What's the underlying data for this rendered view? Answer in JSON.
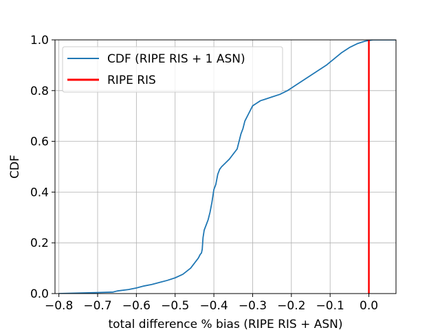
{
  "chart_data": {
    "type": "line",
    "title": "",
    "xlabel": "total difference % bias (RIPE RIS + ASN)",
    "ylabel": "CDF",
    "xlim": [
      -0.81,
      0.07
    ],
    "ylim": [
      0.0,
      1.0
    ],
    "xticks": [
      -0.8,
      -0.7,
      -0.6,
      -0.5,
      -0.4,
      -0.3,
      -0.2,
      -0.1,
      0.0
    ],
    "xtick_labels": [
      "−0.8",
      "−0.7",
      "−0.6",
      "−0.5",
      "−0.4",
      "−0.3",
      "−0.2",
      "−0.1",
      "0.0"
    ],
    "yticks": [
      0.0,
      0.2,
      0.4,
      0.6,
      0.8,
      1.0
    ],
    "ytick_labels": [
      "0.0",
      "0.2",
      "0.4",
      "0.6",
      "0.8",
      "1.0"
    ],
    "grid": true,
    "legend_position": "top-left",
    "series": [
      {
        "name": "CDF (RIPE RIS + 1 ASN)",
        "color": "#1f77b4",
        "x": [
          -0.8,
          -0.75,
          -0.7,
          -0.66,
          -0.65,
          -0.64,
          -0.62,
          -0.6,
          -0.58,
          -0.56,
          -0.54,
          -0.52,
          -0.5,
          -0.48,
          -0.46,
          -0.45,
          -0.44,
          -0.435,
          -0.432,
          -0.43,
          -0.428,
          -0.425,
          -0.42,
          -0.415,
          -0.41,
          -0.405,
          -0.4,
          -0.395,
          -0.39,
          -0.385,
          -0.38,
          -0.37,
          -0.36,
          -0.355,
          -0.35,
          -0.345,
          -0.34,
          -0.335,
          -0.33,
          -0.325,
          -0.32,
          -0.31,
          -0.3,
          -0.29,
          -0.28,
          -0.27,
          -0.26,
          -0.25,
          -0.23,
          -0.21,
          -0.19,
          -0.17,
          -0.15,
          -0.13,
          -0.11,
          -0.09,
          -0.07,
          -0.05,
          -0.03,
          -0.01,
          0.01,
          0.03,
          0.05,
          0.07
        ],
        "y": [
          0.0,
          0.002,
          0.004,
          0.006,
          0.01,
          0.012,
          0.016,
          0.022,
          0.03,
          0.036,
          0.044,
          0.052,
          0.062,
          0.076,
          0.1,
          0.12,
          0.14,
          0.155,
          0.16,
          0.175,
          0.22,
          0.25,
          0.27,
          0.29,
          0.32,
          0.36,
          0.41,
          0.43,
          0.47,
          0.49,
          0.5,
          0.515,
          0.53,
          0.54,
          0.55,
          0.56,
          0.57,
          0.6,
          0.63,
          0.65,
          0.68,
          0.71,
          0.74,
          0.75,
          0.76,
          0.765,
          0.77,
          0.775,
          0.785,
          0.8,
          0.82,
          0.84,
          0.86,
          0.88,
          0.9,
          0.925,
          0.95,
          0.97,
          0.985,
          0.995,
          1.0,
          1.0,
          1.0,
          1.0
        ]
      },
      {
        "name": "RIPE RIS",
        "color": "#ff0000",
        "type": "vline",
        "x": [
          0.0,
          0.0
        ],
        "y": [
          0.0,
          1.0
        ]
      }
    ]
  }
}
